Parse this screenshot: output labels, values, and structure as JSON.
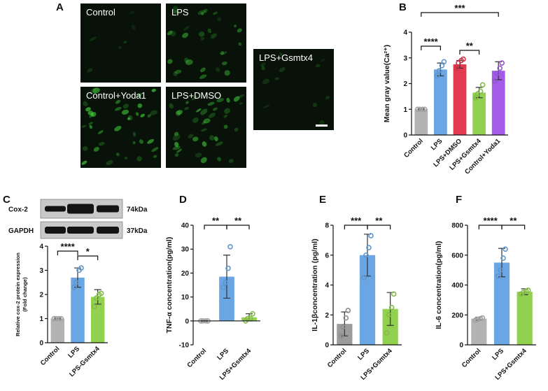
{
  "figure_a": {
    "panel": "A",
    "labels": [
      "Control",
      "LPS",
      "LPS+Gsmtx4",
      "Control+Yoda1",
      "LPS+DMSO"
    ]
  },
  "chart_data": [
    {
      "type": "bar",
      "panel": "B",
      "ylabel": "Mean gray value(Ca²⁺)",
      "categories": [
        "Control",
        "LPS",
        "LPS+DMSO",
        "LPS+Gsmtx4",
        "Control+Yoda1"
      ],
      "values": [
        1.0,
        2.55,
        2.75,
        1.65,
        2.5
      ],
      "errors": [
        0.02,
        0.25,
        0.15,
        0.2,
        0.35
      ],
      "points": [
        [
          1,
          1,
          1,
          1
        ],
        [
          2.3,
          2.5,
          2.7,
          2.85
        ],
        [
          2.6,
          2.8,
          2.9,
          2.95
        ],
        [
          1.45,
          1.6,
          1.7,
          1.95
        ],
        [
          2.1,
          2.4,
          2.6,
          2.8
        ]
      ],
      "colors": [
        "#b3b3b3",
        "#6aa6e3",
        "#e23a50",
        "#92d050",
        "#a35ce8"
      ],
      "ylim": [
        0,
        4
      ],
      "yticks": [
        0,
        1,
        2,
        3,
        4
      ],
      "significance": [
        {
          "from": "Control",
          "to": "LPS",
          "label": "****"
        },
        {
          "from": "LPS+DMSO",
          "to": "LPS+Gsmtx4",
          "label": "**"
        },
        {
          "from": "Control",
          "to": "Control+Yoda1",
          "label": "***"
        }
      ]
    },
    {
      "type": "bar",
      "panel": "C",
      "ylabel": [
        "Relative cox-2 protein expression",
        "(Fold change)"
      ],
      "blot": {
        "rows": [
          "Cox-2",
          "GAPDH"
        ],
        "sizes": [
          "74kDa",
          "37kDa"
        ]
      },
      "categories": [
        "Control",
        "LPS",
        "LPS-Gsmtx4"
      ],
      "values": [
        1.0,
        2.7,
        1.9
      ],
      "errors": [
        0.02,
        0.4,
        0.3
      ],
      "points": [
        [
          1,
          1,
          1,
          1
        ],
        [
          2.3,
          2.5,
          3.0,
          3.1
        ],
        [
          1.5,
          1.85,
          2.0,
          2.05
        ]
      ],
      "colors": [
        "#b3b3b3",
        "#6aa6e3",
        "#92d050"
      ],
      "ylim": [
        0,
        4
      ],
      "yticks": [
        0,
        1,
        2,
        3,
        4
      ],
      "significance": [
        {
          "from": "Control",
          "to": "LPS",
          "label": "****"
        },
        {
          "from": "LPS",
          "to": "LPS-Gsmtx4",
          "label": "*"
        }
      ]
    },
    {
      "type": "bar",
      "panel": "D",
      "ylabel": "TNF-α concentration(pg/ml)",
      "categories": [
        "Control",
        "LPS",
        "LPS+Gsmtx4"
      ],
      "values": [
        0,
        18.5,
        1.5
      ],
      "errors": [
        0.1,
        9,
        1.5
      ],
      "points": [
        [
          0,
          0,
          0,
          0
        ],
        [
          14,
          16,
          22,
          31
        ],
        [
          0,
          1,
          1,
          3
        ]
      ],
      "colors": [
        "#b3b3b3",
        "#6aa6e3",
        "#92d050"
      ],
      "ylim": [
        -10,
        40
      ],
      "yticks": [
        -10,
        0,
        10,
        20,
        30,
        40
      ],
      "significance": [
        {
          "from": "Control",
          "to": "LPS",
          "label": "**"
        },
        {
          "from": "LPS",
          "to": "LPS+Gsmtx4",
          "label": "**"
        }
      ]
    },
    {
      "type": "bar",
      "panel": "E",
      "ylabel": "IL-1βconcentration (pg/ml)",
      "categories": [
        "Control",
        "LPS",
        "LPS+Gsmtx4"
      ],
      "values": [
        1.4,
        6.0,
        2.4
      ],
      "errors": [
        0.8,
        1.4,
        1.1
      ],
      "points": [
        [
          0.6,
          1.2,
          1.8,
          2.3
        ],
        [
          4.5,
          6,
          6.5,
          7.3
        ],
        [
          0.8,
          2,
          2.5,
          3.4
        ]
      ],
      "colors": [
        "#9c9c9c",
        "#6aa6e3",
        "#92d050"
      ],
      "ylim": [
        0,
        8
      ],
      "yticks": [
        0,
        2,
        4,
        6,
        8
      ],
      "significance": [
        {
          "from": "Control",
          "to": "LPS",
          "label": "***"
        },
        {
          "from": "LPS",
          "to": "LPS+Gsmtx4",
          "label": "**"
        }
      ]
    },
    {
      "type": "bar",
      "panel": "F",
      "ylabel": "IL-6 concentration(pg/ml)",
      "categories": [
        "Control",
        "LPS",
        "LPS+Gsmtx4"
      ],
      "values": [
        175,
        550,
        355
      ],
      "errors": [
        10,
        95,
        20
      ],
      "points": [
        [
          165,
          170,
          175,
          180
        ],
        [
          460,
          500,
          580,
          640
        ],
        [
          340,
          350,
          360,
          365
        ]
      ],
      "colors": [
        "#b3b3b3",
        "#6aa6e3",
        "#92d050"
      ],
      "ylim": [
        0,
        800
      ],
      "yticks": [
        0,
        200,
        400,
        600,
        800
      ],
      "significance": [
        {
          "from": "Control",
          "to": "LPS",
          "label": "****"
        },
        {
          "from": "LPS",
          "to": "LPS+Gsmtx4",
          "label": "**"
        }
      ]
    }
  ]
}
